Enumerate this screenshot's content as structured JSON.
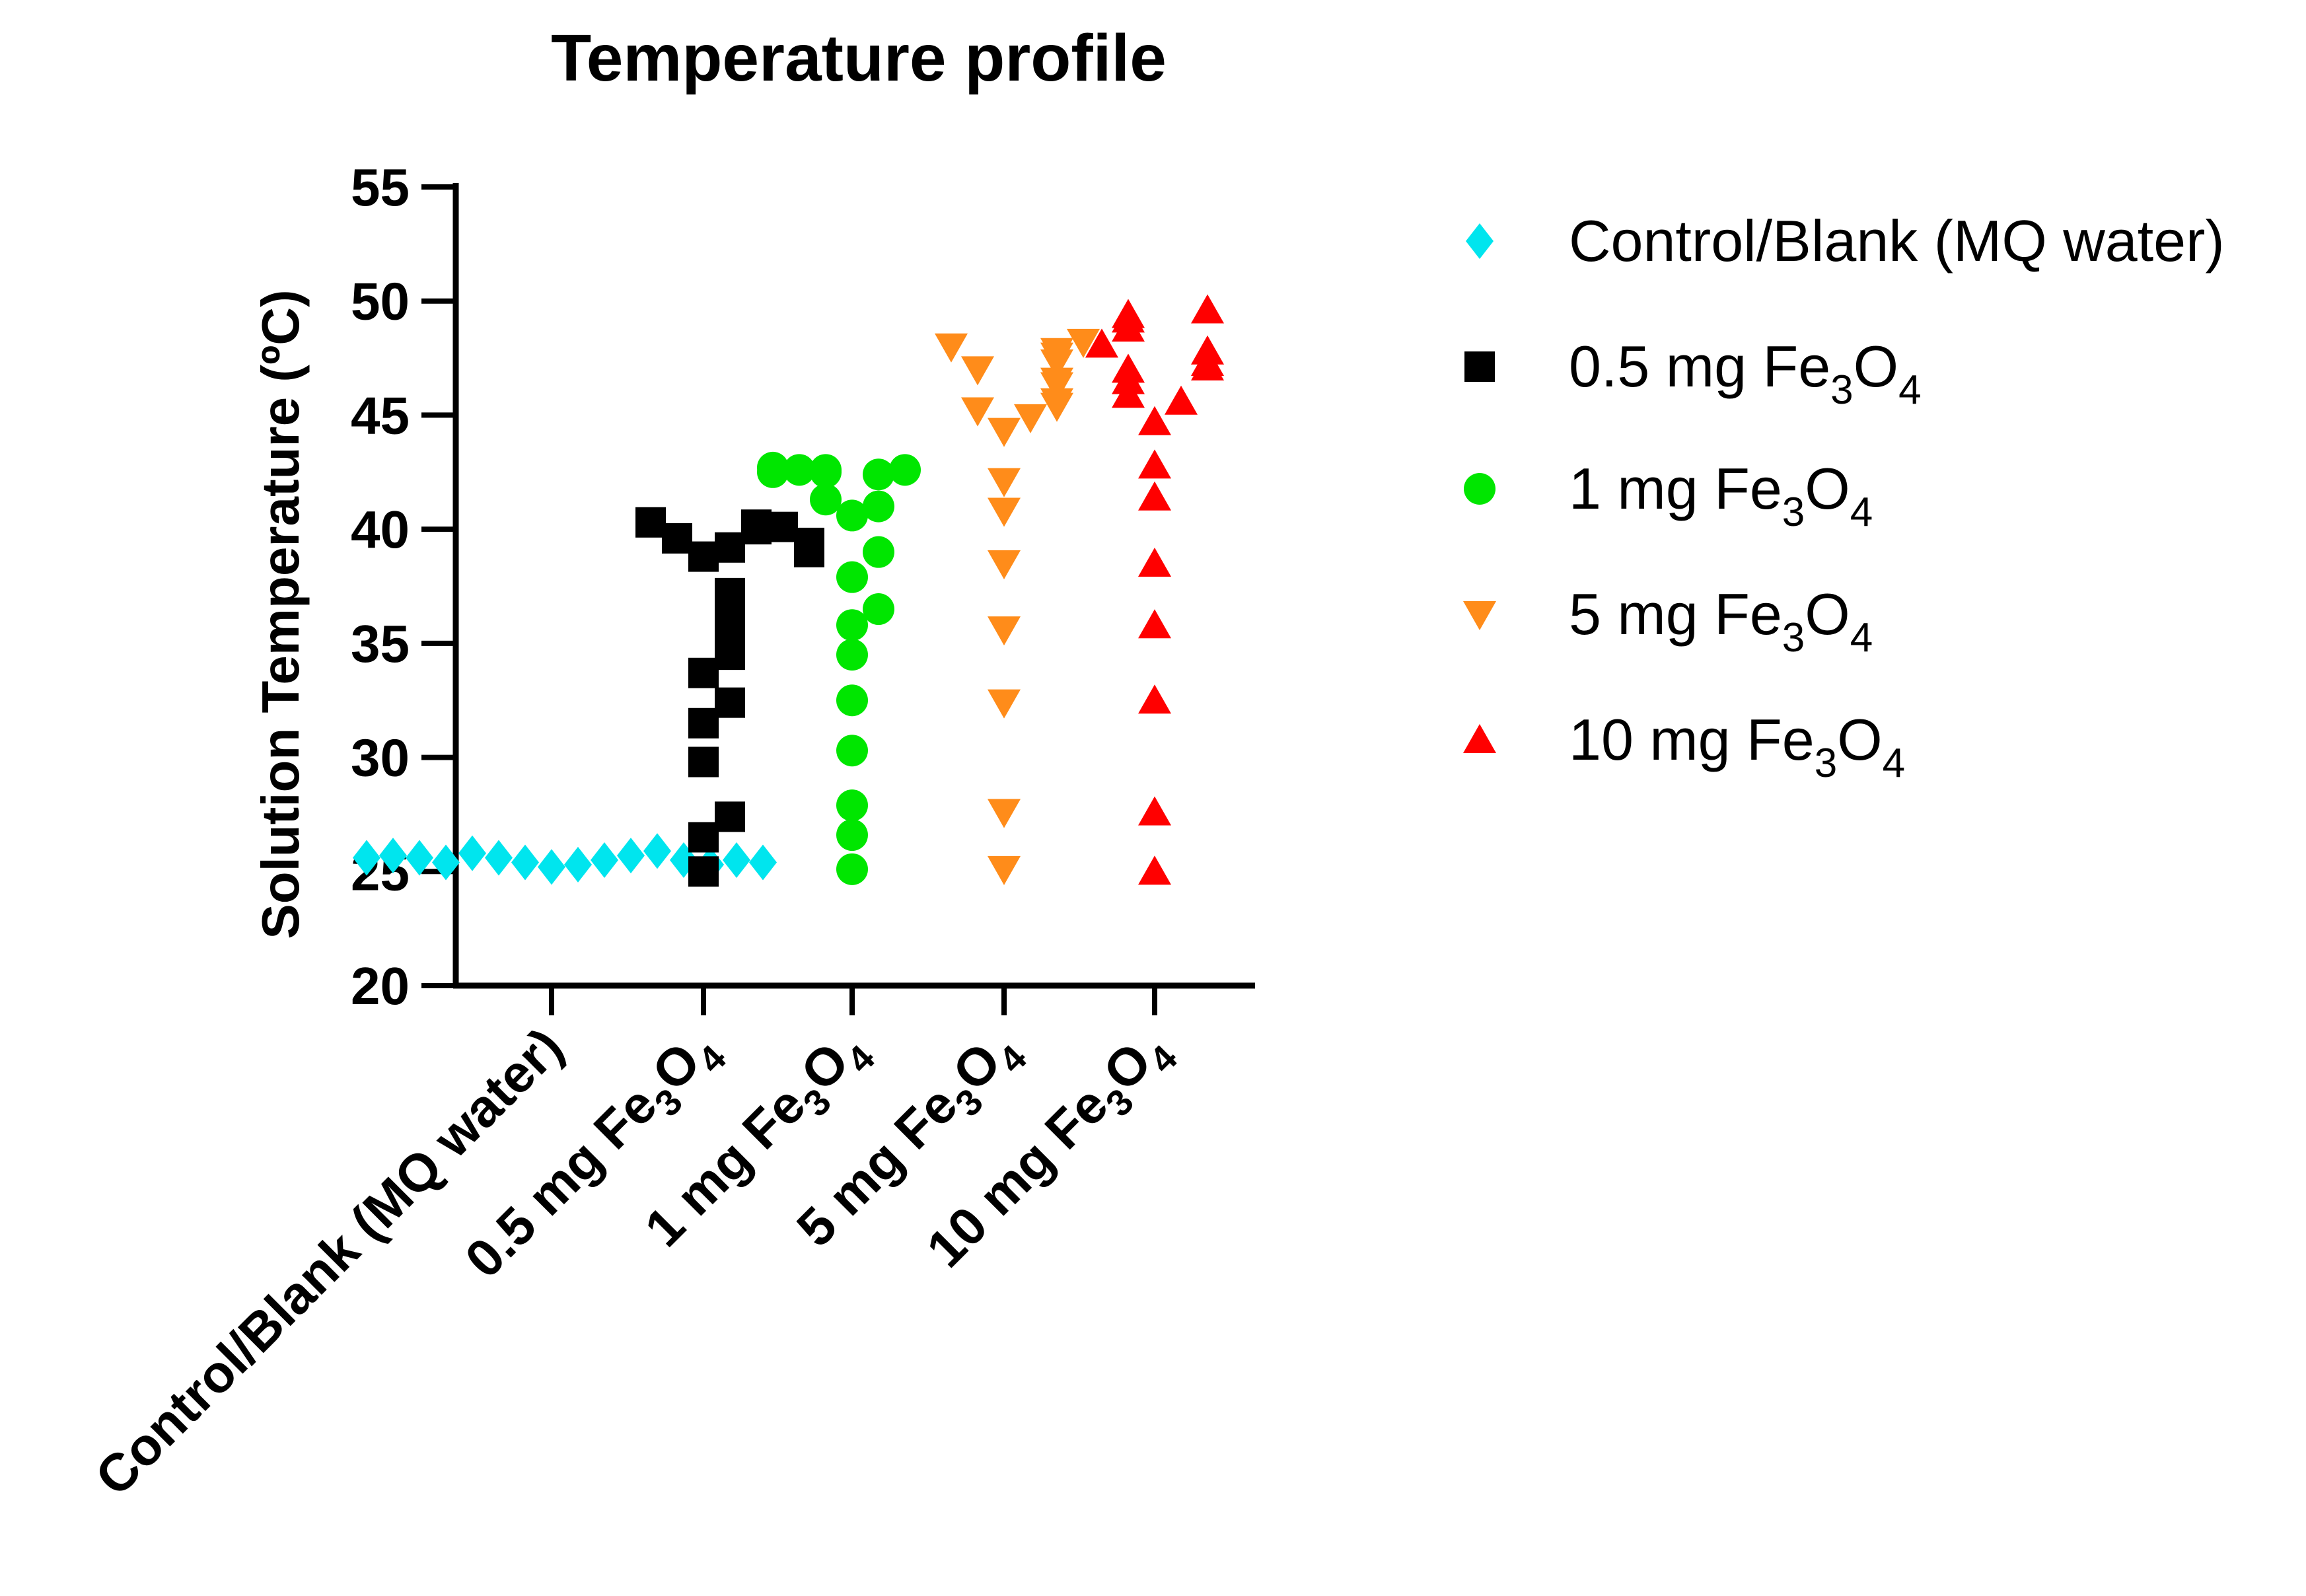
{
  "chart_data": {
    "type": "scatter",
    "title": "Temperature profile",
    "xlabel": "",
    "ylabel": "Solution Temperature (ºC)",
    "ylim": [
      20,
      55
    ],
    "yticks": [
      "20",
      "25",
      "30",
      "35",
      "40",
      "45",
      "50",
      "55"
    ],
    "grid": false,
    "legend_position": "right",
    "categories": [
      {
        "base": "Control/Blank (MQ water)",
        "formula": false
      },
      {
        "base": "0.5 mg Fe",
        "sub1": "3",
        "mid": "O",
        "sub2": "4",
        "formula": true
      },
      {
        "base": "1 mg Fe",
        "sub1": "3",
        "mid": "O",
        "sub2": "4",
        "formula": true
      },
      {
        "base": "5 mg Fe",
        "sub1": "3",
        "mid": "O",
        "sub2": "4",
        "formula": true
      },
      {
        "base": "10 mg Fe",
        "sub1": "3",
        "mid": "O",
        "sub2": "4",
        "formula": true
      }
    ],
    "series": [
      {
        "name": "Control/Blank (MQ water)",
        "marker": "diamond",
        "color": "#00E5EE",
        "values": [
          25.2,
          25.3,
          25.4,
          25.5,
          25.6,
          25.7,
          25.8,
          25.9,
          25.4,
          25.5,
          25.6,
          25.3,
          25.7,
          25.5,
          25.6,
          25.4
        ]
      },
      {
        "name": "0.5 mg Fe3O4",
        "marker": "square",
        "color": "#000000",
        "values": [
          25.0,
          26.5,
          27.4,
          29.8,
          31.5,
          32.4,
          33.7,
          34.5,
          35.2,
          36.2,
          37.2,
          38.8,
          39.2,
          39.6,
          40.0,
          40.2,
          40.3,
          40.1,
          39.4,
          39.0
        ]
      },
      {
        "name": "1 mg Fe3O4",
        "marker": "circle",
        "color": "#00E600",
        "values": [
          25.1,
          26.6,
          27.9,
          30.3,
          32.5,
          34.5,
          35.8,
          36.5,
          37.9,
          39.0,
          40.6,
          41.0,
          41.3,
          42.4,
          42.5,
          42.6,
          42.6,
          42.6,
          42.5,
          42.7
        ]
      },
      {
        "name": "5 mg Fe3O4",
        "marker": "triangle-down",
        "color": "#FF8C1A",
        "values": [
          25.1,
          27.6,
          32.4,
          35.6,
          38.5,
          40.8,
          42.1,
          44.3,
          44.9,
          45.2,
          45.4,
          45.6,
          46.3,
          46.5,
          47.0,
          47.3,
          47.6,
          47.8,
          48.0,
          48.2
        ]
      },
      {
        "name": "10 mg Fe3O4",
        "marker": "triangle-up",
        "color": "#FF0000",
        "values": [
          25.0,
          27.6,
          32.5,
          35.8,
          38.5,
          41.4,
          42.8,
          44.7,
          45.6,
          45.9,
          46.5,
          47.0,
          47.1,
          47.3,
          47.8,
          48.1,
          48.8,
          49.2,
          49.4,
          49.6
        ]
      }
    ]
  },
  "legend": [
    {
      "base": "Control/Blank (MQ water)",
      "formula": false,
      "marker": "diamond",
      "color": "#00E5EE"
    },
    {
      "base": "0.5 mg Fe",
      "sub1": "3",
      "mid": "O",
      "sub2": "4",
      "formula": true,
      "marker": "square",
      "color": "#000000"
    },
    {
      "base": "1 mg Fe",
      "sub1": "3",
      "mid": "O",
      "sub2": "4",
      "formula": true,
      "marker": "circle",
      "color": "#00E600"
    },
    {
      "base": "5 mg Fe",
      "sub1": "3",
      "mid": "O",
      "sub2": "4",
      "formula": true,
      "marker": "triangle-down",
      "color": "#FF8C1A"
    },
    {
      "base": "10 mg Fe",
      "sub1": "3",
      "mid": "O",
      "sub2": "4",
      "formula": true,
      "marker": "triangle-up",
      "color": "#FF0000"
    }
  ]
}
